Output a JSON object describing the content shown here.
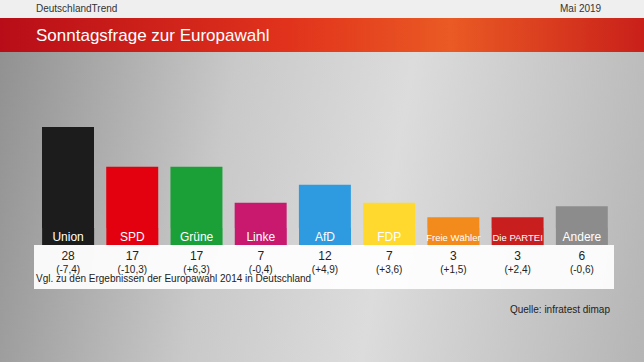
{
  "chart_data": {
    "type": "bar",
    "header": "DeutschlandTrend",
    "date": "Mai 2019",
    "title": "Sonntagsfrage zur Europawahl",
    "categories": [
      "Union",
      "SPD",
      "Grüne",
      "Linke",
      "AfD",
      "FDP",
      "Freie Wähler",
      "Die PARTEI",
      "Andere"
    ],
    "values": [
      28,
      17,
      17,
      7,
      12,
      7,
      3,
      3,
      6
    ],
    "change_labels": [
      "(-7,4)",
      "(-10,3)",
      "(+6,3)",
      "(-0,4)",
      "(+4,9)",
      "(+3,6)",
      "(+1,5)",
      "(+2,4)",
      "(-0,6)"
    ],
    "colors": [
      "#1c1c1c",
      "#e3000f",
      "#1aa037",
      "#c8196e",
      "#2e9be0",
      "#ffd92e",
      "#f28a1c",
      "#c81e1e",
      "#8c8c8c"
    ],
    "ylim": [
      0,
      28
    ],
    "tick_labels": "x",
    "data_labels": true,
    "grid": false,
    "note": "Vgl. zu den Ergebnissen der Europawahl 2014 in Deutschland",
    "source": "Quelle: infratest dimap"
  }
}
